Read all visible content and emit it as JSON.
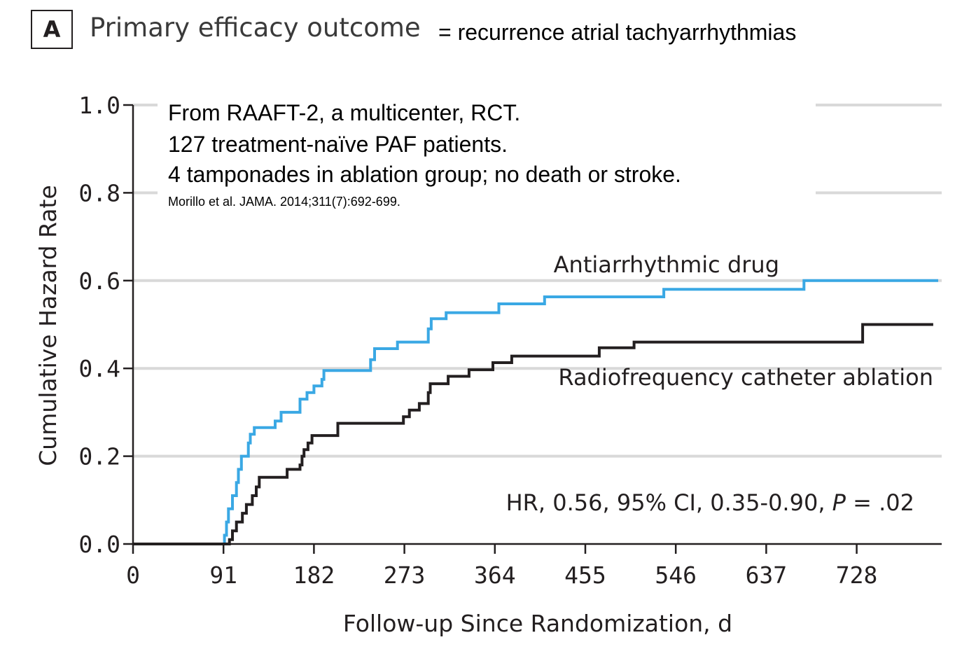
{
  "panel": {
    "letter": "A",
    "title": "Primary efficacy outcome",
    "subtitle": "= recurrence atrial tachyarrhythmias"
  },
  "annotation": {
    "lines": [
      "From RAAFT-2, a multicenter, RCT.",
      "127 treatment-naïve PAF patients.",
      "4 tamponades in ablation group; no death or stroke."
    ],
    "citation": "Morillo et al. JAMA. 2014;311(7):692-699."
  },
  "colors": {
    "drug": "#3aa8e4",
    "ablation": "#231f20",
    "grid": "#d9d9d9",
    "axis": "#231f20"
  },
  "chart_data": {
    "type": "line",
    "step": true,
    "title": "",
    "xlabel": "Follow-up Since Randomization, d",
    "ylabel": "Cumulative Hazard Rate",
    "xlim": [
      0,
      810
    ],
    "ylim": [
      0,
      1.0
    ],
    "xticks": [
      0,
      91,
      182,
      273,
      364,
      455,
      546,
      637,
      728
    ],
    "yticks": [
      0.0,
      0.2,
      0.4,
      0.6,
      0.8,
      1.0
    ],
    "ytick_labels": [
      "0.0",
      "0.2",
      "0.4",
      "0.6",
      "0.8",
      "1.0"
    ],
    "grid": "horizontal",
    "series": [
      {
        "name": "Antiarrhythmic drug",
        "color_key": "drug",
        "points": [
          [
            0,
            0.0
          ],
          [
            91,
            0.0
          ],
          [
            92,
            0.02
          ],
          [
            94,
            0.05
          ],
          [
            96,
            0.08
          ],
          [
            100,
            0.11
          ],
          [
            104,
            0.14
          ],
          [
            106,
            0.17
          ],
          [
            109,
            0.2
          ],
          [
            116,
            0.23
          ],
          [
            118,
            0.25
          ],
          [
            122,
            0.265
          ],
          [
            143,
            0.28
          ],
          [
            149,
            0.3
          ],
          [
            168,
            0.33
          ],
          [
            175,
            0.345
          ],
          [
            182,
            0.36
          ],
          [
            190,
            0.375
          ],
          [
            192,
            0.395
          ],
          [
            239,
            0.42
          ],
          [
            243,
            0.445
          ],
          [
            266,
            0.46
          ],
          [
            297,
            0.49
          ],
          [
            300,
            0.513
          ],
          [
            315,
            0.527
          ],
          [
            368,
            0.547
          ],
          [
            414,
            0.563
          ],
          [
            534,
            0.58
          ],
          [
            675,
            0.6
          ],
          [
            810,
            0.6
          ]
        ]
      },
      {
        "name": "Radiofrequency catheter ablation",
        "color_key": "ablation",
        "points": [
          [
            0,
            0.0
          ],
          [
            95,
            0.0
          ],
          [
            97,
            0.01
          ],
          [
            100,
            0.03
          ],
          [
            104,
            0.05
          ],
          [
            110,
            0.07
          ],
          [
            114,
            0.09
          ],
          [
            120,
            0.11
          ],
          [
            124,
            0.13
          ],
          [
            127,
            0.152
          ],
          [
            155,
            0.17
          ],
          [
            168,
            0.18
          ],
          [
            170,
            0.2
          ],
          [
            172,
            0.215
          ],
          [
            176,
            0.23
          ],
          [
            180,
            0.247
          ],
          [
            206,
            0.275
          ],
          [
            272,
            0.29
          ],
          [
            278,
            0.305
          ],
          [
            288,
            0.32
          ],
          [
            297,
            0.345
          ],
          [
            299,
            0.365
          ],
          [
            317,
            0.382
          ],
          [
            338,
            0.397
          ],
          [
            362,
            0.413
          ],
          [
            381,
            0.428
          ],
          [
            469,
            0.447
          ],
          [
            504,
            0.46
          ],
          [
            734,
            0.5
          ],
          [
            805,
            0.5
          ]
        ]
      }
    ],
    "series_labels": [
      "Antiarrhythmic drug",
      "Radiofrequency catheter ablation"
    ],
    "annotation_hr": "HR, 0.56, 95% CI, 0.35-0.90, ",
    "annotation_p_symbol": "P",
    "annotation_p_value": " = .02"
  }
}
